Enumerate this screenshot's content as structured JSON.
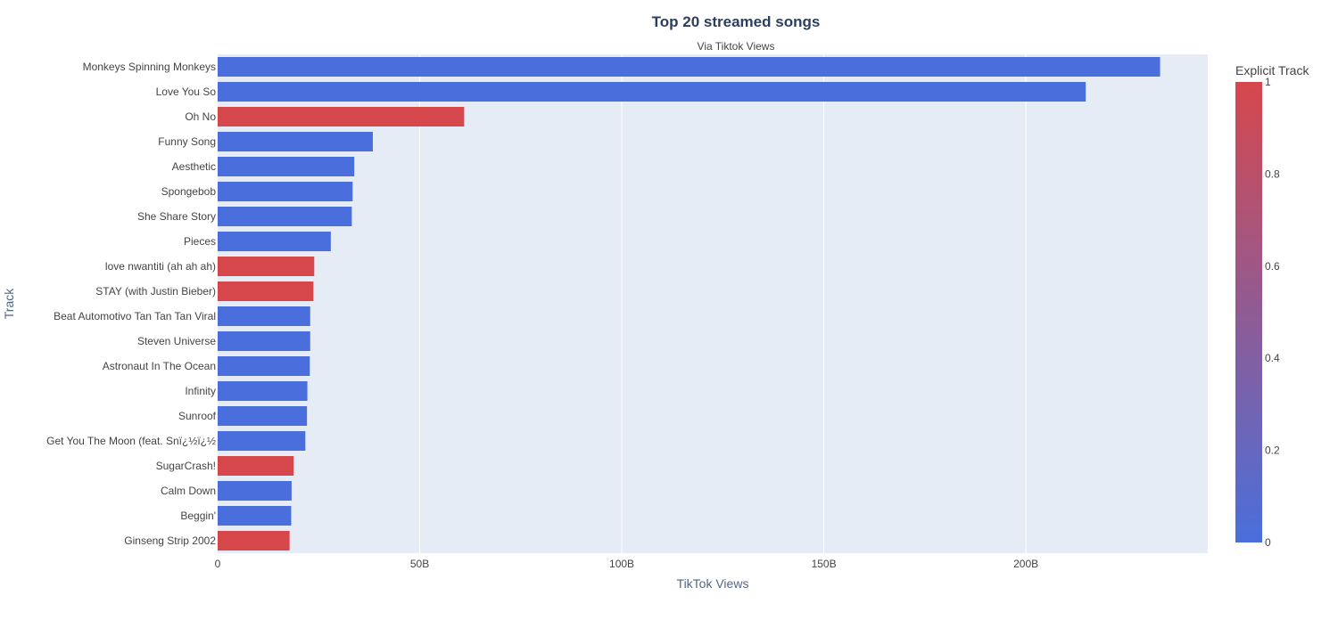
{
  "chart_data": {
    "type": "bar",
    "orientation": "horizontal",
    "title": "Top 20 streamed songs",
    "subtitle": "Via Tiktok Views",
    "xlabel": "TikTok Views",
    "ylabel": "Track",
    "xlim": [
      0,
      245000000000
    ],
    "x_ticks": [
      {
        "value": 0,
        "label": "0"
      },
      {
        "value": 50000000000,
        "label": "50B"
      },
      {
        "value": 100000000000,
        "label": "100B"
      },
      {
        "value": 150000000000,
        "label": "150B"
      },
      {
        "value": 200000000000,
        "label": "200B"
      }
    ],
    "grid": true,
    "categories": [
      "Monkeys Spinning Monkeys",
      "Love You So",
      "Oh No",
      "Funny Song",
      "Aesthetic",
      "Spongebob",
      "She Share Story",
      "Pieces",
      "love nwantiti (ah ah ah)",
      "STAY (with Justin Bieber)",
      "Beat Automotivo Tan Tan Tan Viral",
      "Steven Universe",
      "Astronaut In The Ocean",
      "Infinity",
      "Sunroof",
      "Get You The Moon (feat. Snï¿½ï¿½",
      "SugarCrash!",
      "Calm Down",
      "Beggin'",
      "Ginseng Strip 2002"
    ],
    "values": [
      233200000000,
      214800000000,
      61000000000,
      38400000000,
      33800000000,
      33400000000,
      33200000000,
      28000000000,
      23900000000,
      23700000000,
      22900000000,
      22900000000,
      22800000000,
      22200000000,
      22100000000,
      21700000000,
      18800000000,
      18300000000,
      18200000000,
      17800000000
    ],
    "explicit": [
      0,
      0,
      1,
      0,
      0,
      0,
      0,
      0,
      1,
      1,
      0,
      0,
      0,
      0,
      0,
      0,
      1,
      0,
      0,
      1
    ],
    "colorbar": {
      "title": "Explicit Track",
      "range": [
        0,
        1
      ],
      "ticks": [
        {
          "value": 0,
          "label": "0"
        },
        {
          "value": 0.2,
          "label": "0.2"
        },
        {
          "value": 0.4,
          "label": "0.4"
        },
        {
          "value": 0.6,
          "label": "0.6"
        },
        {
          "value": 0.8,
          "label": "0.8"
        },
        {
          "value": 1,
          "label": "1"
        }
      ],
      "color_low": "#4a6fdc",
      "color_high": "#d6474c"
    }
  }
}
